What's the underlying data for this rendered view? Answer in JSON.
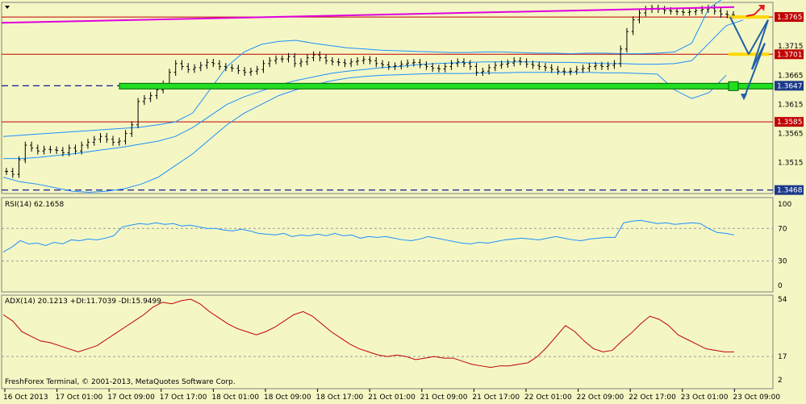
{
  "colors": {
    "background": "#f4f7c4",
    "price_bars": "#000000",
    "bollinger": "#1e90ff",
    "magenta_trendline": "#e000e0",
    "red_level": "#c00000",
    "green_zone": "#22dd22",
    "blue_dashed": "#00008b",
    "forecast_arrows": "#1f5fa8",
    "up_arrow": "#e02020",
    "yellow_marker": "#ffd700",
    "rsi_line": "#1e90ff",
    "adx_line": "#c00000"
  },
  "footer": {
    "copyright": "FreshForex Terminal, © 2001-2013, MetaQuotes Software Corp."
  },
  "chart_data": [
    {
      "type": "candlestick",
      "panel": "price",
      "title": "",
      "ylim": [
        1.3462,
        1.379
      ],
      "y_ticks": [
        "1.3765",
        "1.3715",
        "1.3665",
        "1.3615",
        "1.3565",
        "1.3515"
      ],
      "price_labels": [
        {
          "text": "1.3765",
          "value": 1.3765,
          "style": "red"
        },
        {
          "text": "1.3701",
          "value": 1.3701,
          "style": "red"
        },
        {
          "text": "1.3647",
          "value": 1.3647,
          "style": "blue"
        },
        {
          "text": "1.3585",
          "value": 1.3585,
          "style": "red"
        },
        {
          "text": "1.3468",
          "value": 1.3468,
          "style": "blue"
        }
      ],
      "x_labels": [
        "16 Oct 2013",
        "17 Oct 01:00",
        "17 Oct 09:00",
        "17 Oct 17:00",
        "18 Oct 01:00",
        "18 Oct 09:00",
        "18 Oct 17:00",
        "21 Oct 01:00",
        "21 Oct 09:00",
        "21 Oct 17:00",
        "22 Oct 01:00",
        "22 Oct 09:00",
        "22 Oct 17:00",
        "23 Oct 01:00",
        "23 Oct 09:00"
      ],
      "close_series": [
        1.35,
        1.3495,
        1.352,
        1.3545,
        1.354,
        1.3535,
        1.3538,
        1.3537,
        1.3536,
        1.3532,
        1.354,
        1.3535,
        1.3545,
        1.355,
        1.3555,
        1.356,
        1.3555,
        1.355,
        1.3552,
        1.3565,
        1.358,
        1.362,
        1.3625,
        1.363,
        1.364,
        1.365,
        1.367,
        1.3685,
        1.368,
        1.3675,
        1.3678,
        1.3682,
        1.3687,
        1.3685,
        1.368,
        1.3678,
        1.3677,
        1.3673,
        1.367,
        1.3672,
        1.3675,
        1.3685,
        1.369,
        1.3693,
        1.3693,
        1.3697,
        1.3685,
        1.3688,
        1.3695,
        1.37,
        1.3695,
        1.369,
        1.3688,
        1.3687,
        1.3685,
        1.3688,
        1.369,
        1.3692,
        1.369,
        1.3685,
        1.3683,
        1.368,
        1.3681,
        1.3684,
        1.3686,
        1.3687,
        1.3683,
        1.368,
        1.3677,
        1.3676,
        1.368,
        1.3685,
        1.3688,
        1.3685,
        1.368,
        1.367,
        1.3672,
        1.3678,
        1.3682,
        1.3684,
        1.3686,
        1.369,
        1.3688,
        1.3684,
        1.3682,
        1.368,
        1.3678,
        1.3675,
        1.3672,
        1.3671,
        1.3672,
        1.3675,
        1.3677,
        1.368,
        1.3682,
        1.368,
        1.3682,
        1.3685,
        1.371,
        1.374,
        1.376,
        1.3772,
        1.3778,
        1.378,
        1.3778,
        1.3776,
        1.3775,
        1.3774,
        1.3773,
        1.3774,
        1.3776,
        1.3778,
        1.378,
        1.3775,
        1.377,
        1.3769,
        1.3768
      ],
      "bollinger": {
        "upper": [
          1.356,
          1.3562,
          1.3564,
          1.3566,
          1.3568,
          1.357,
          1.3572,
          1.3574,
          1.3576,
          1.358,
          1.3585,
          1.36,
          1.364,
          1.368,
          1.3705,
          1.3718,
          1.3723,
          1.3725,
          1.372,
          1.3716,
          1.3712,
          1.371,
          1.3708,
          1.3707,
          1.3706,
          1.3705,
          1.3704,
          1.3704,
          1.3705,
          1.3705,
          1.3704,
          1.3703,
          1.3703,
          1.3702,
          1.3703,
          1.3703,
          1.3702,
          1.3702,
          1.3703,
          1.3705,
          1.372,
          1.378,
          1.38
        ],
        "middle": [
          1.3522,
          1.3522,
          1.3524,
          1.3527,
          1.353,
          1.3534,
          1.3538,
          1.3542,
          1.3547,
          1.3552,
          1.356,
          1.3575,
          1.3595,
          1.3615,
          1.3628,
          1.3638,
          1.3648,
          1.3656,
          1.3662,
          1.3668,
          1.3672,
          1.3675,
          1.3678,
          1.368,
          1.3683,
          1.3685,
          1.3686,
          1.3687,
          1.3688,
          1.3688,
          1.3688,
          1.3688,
          1.3687,
          1.3687,
          1.3686,
          1.3685,
          1.3685,
          1.3684,
          1.3684,
          1.3685,
          1.369,
          1.372,
          1.375,
          1.376
        ],
        "lower": [
          1.349,
          1.3482,
          1.3478,
          1.3472,
          1.3466,
          1.3464,
          1.3466,
          1.347,
          1.3478,
          1.349,
          1.351,
          1.353,
          1.3555,
          1.358,
          1.36,
          1.3615,
          1.363,
          1.364,
          1.3648,
          1.3655,
          1.366,
          1.3663,
          1.3665,
          1.3666,
          1.3667,
          1.3668,
          1.3668,
          1.3668,
          1.3669,
          1.3669,
          1.367,
          1.367,
          1.367,
          1.367,
          1.367,
          1.3669,
          1.3669,
          1.3668,
          1.3667,
          1.364,
          1.3625,
          1.3635,
          1.3665
        ]
      },
      "trendline_magenta": {
        "from": 1.3755,
        "to": 1.3782
      },
      "green_zone": 1.3647,
      "red_levels": [
        1.3765,
        1.3701,
        1.3585
      ],
      "blue_dashed_levels": [
        1.3647,
        1.3468
      ],
      "forecast_points": [
        1.3765,
        1.3701,
        1.376,
        1.3675,
        1.372,
        1.3625
      ]
    },
    {
      "type": "line",
      "panel": "rsi",
      "title": "RSI(14) 62.1658",
      "ylim": [
        0,
        100
      ],
      "y_ticks": [
        "100",
        "70",
        "30",
        "0"
      ],
      "levels": [
        70,
        30
      ],
      "series": [
        {
          "values": [
            41,
            47,
            55,
            51,
            52,
            49,
            53,
            51,
            56,
            55,
            57,
            56,
            58,
            61,
            72,
            74,
            76,
            75,
            77,
            75,
            76,
            73,
            74,
            72,
            70,
            70,
            68,
            67,
            69,
            67,
            64,
            63,
            62,
            64,
            60,
            62,
            61,
            63,
            61,
            64,
            61,
            62,
            58,
            60,
            59,
            60,
            58,
            56,
            55,
            57,
            60,
            58,
            56,
            54,
            52,
            51,
            53,
            52,
            54,
            56,
            57,
            58,
            57,
            56,
            58,
            60,
            58,
            56,
            55,
            57,
            58,
            59,
            59,
            77,
            79,
            80,
            78,
            76,
            77,
            75,
            76,
            77,
            76,
            70,
            65,
            64,
            62
          ]
        }
      ]
    },
    {
      "type": "line",
      "panel": "adx",
      "title": "ADX(14) 20.1213 +DI:11.7039 -DI:15.9499",
      "ylim": [
        2,
        54
      ],
      "y_ticks": [
        "54",
        "17",
        "2"
      ],
      "levels": [
        17
      ],
      "series": [
        {
          "values": [
            44,
            40,
            33,
            30,
            27,
            26,
            24,
            22,
            20,
            22,
            24,
            28,
            32,
            36,
            40,
            44,
            49,
            52,
            51,
            53,
            54,
            51,
            46,
            42,
            38,
            35,
            33,
            31,
            33,
            36,
            40,
            44,
            46,
            43,
            38,
            33,
            29,
            25,
            22,
            20,
            18,
            17,
            18,
            17,
            15,
            16,
            17,
            16,
            16,
            14,
            12,
            11,
            10,
            11,
            11,
            12,
            13,
            17,
            23,
            30,
            37,
            33,
            27,
            22,
            20,
            21,
            27,
            32,
            38,
            43,
            41,
            37,
            31,
            28,
            25,
            22,
            21,
            20,
            20
          ]
        }
      ]
    }
  ]
}
